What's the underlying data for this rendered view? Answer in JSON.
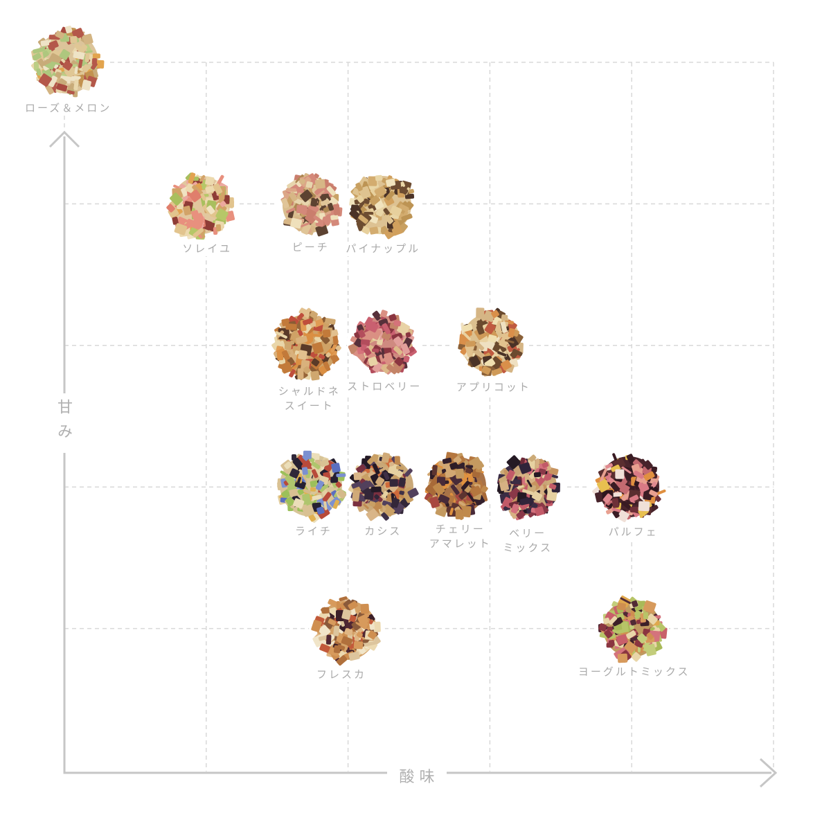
{
  "colors": {
    "background": "#ffffff",
    "grid": "#d8d8d8",
    "axis": "#c6c6c6",
    "axis_label": "#b0b0b0",
    "point_label": "#a9a9a9"
  },
  "chart_data": {
    "type": "scatter",
    "title": "",
    "xlabel": "酸味",
    "ylabel": "甘み",
    "x_range": [
      0,
      5
    ],
    "y_range": [
      0,
      5
    ],
    "grid": "dashed",
    "legend": "none",
    "points": [
      {
        "id": "rose-melon",
        "label_lines": [
          "ローズ＆メロン"
        ],
        "x": 0.02,
        "y": 5.0,
        "size": 104,
        "label_dx": 0,
        "base": "#dcc49a",
        "palette": [
          "#e9d7ac",
          "#e0c795",
          "#d3b482",
          "#c8ab79",
          "#aec77e",
          "#bcce86",
          "#a84a40",
          "#b4584a",
          "#e2a44e",
          "#eee3c6",
          "#c2924f"
        ]
      },
      {
        "id": "soleil",
        "label_lines": [
          "ソレイユ"
        ],
        "x": 0.96,
        "y": 3.99,
        "size": 98,
        "label_dx": 8,
        "base": "#e2c79e",
        "palette": [
          "#ecd9ae",
          "#e2c48e",
          "#e8907e",
          "#e07e6c",
          "#eca89e",
          "#b6c768",
          "#a9bf5e",
          "#d2a368",
          "#8e3c36",
          "#e2a351",
          "#f1e3c2"
        ]
      },
      {
        "id": "peach",
        "label_lines": [
          "ピーチ"
        ],
        "x": 1.73,
        "y": 3.99,
        "size": 93,
        "label_dx": 0,
        "base": "#d9bd8e",
        "palette": [
          "#e0c598",
          "#d7b686",
          "#d4897a",
          "#ca7e6d",
          "#c9a267",
          "#e7d5ad",
          "#ad8752",
          "#5c4231",
          "#dca687",
          "#efe0bb"
        ]
      },
      {
        "id": "pineapple",
        "label_lines": [
          "パイナップル"
        ],
        "x": 2.24,
        "y": 3.99,
        "size": 98,
        "label_dx": 0,
        "base": "#ddc293",
        "palette": [
          "#e9d6a7",
          "#dfc390",
          "#d3ac6f",
          "#c8a061",
          "#f1e3bd",
          "#4b3327",
          "#6d4c31",
          "#d1a05d",
          "#e7d09d",
          "#bd9454"
        ]
      },
      {
        "id": "chardonnay-sweet",
        "label_lines": [
          "シャルドネ",
          "スイート"
        ],
        "x": 1.71,
        "y": 3.0,
        "size": 104,
        "label_dx": 2,
        "base": "#cfa266",
        "palette": [
          "#d9b17c",
          "#cfa76f",
          "#da8f43",
          "#e09b53",
          "#976539",
          "#8a5c34",
          "#e9d6a9",
          "#bf4e3c",
          "#5a3a28",
          "#e2c08e",
          "#c27a3a"
        ]
      },
      {
        "id": "strawberry",
        "label_lines": [
          "ストロベリー"
        ],
        "x": 2.25,
        "y": 3.01,
        "size": 95,
        "label_dx": 0,
        "base": "#cf8a80",
        "palette": [
          "#d5737a",
          "#c96070",
          "#b34d5c",
          "#e8d2a5",
          "#ddb98a",
          "#8a3540",
          "#da9083",
          "#57303a",
          "#e29f9b",
          "#c48468"
        ]
      },
      {
        "id": "apricot",
        "label_lines": [
          "アプリコット"
        ],
        "x": 3.01,
        "y": 3.02,
        "size": 100,
        "label_dx": 2,
        "base": "#dcc08f",
        "palette": [
          "#e2c28e",
          "#e9d1a1",
          "#efe0c1",
          "#d98f4a",
          "#cf9a58",
          "#6b4a2e",
          "#4b3327",
          "#c05a40",
          "#d5b585",
          "#8a6038",
          "#f0dfb0"
        ]
      },
      {
        "id": "lychee",
        "label_lines": [
          "ライチ"
        ],
        "x": 1.74,
        "y": 2.01,
        "size": 104,
        "label_dx": 2,
        "base": "#d8c598",
        "palette": [
          "#e3d0a3",
          "#d9c193",
          "#d4ba8a",
          "#5a6fc0",
          "#7b90d1",
          "#9cc05a",
          "#afc56d",
          "#302839",
          "#262031",
          "#b84a3a",
          "#e0b050",
          "#ebdeb9"
        ]
      },
      {
        "id": "cassis",
        "label_lines": [
          "カシス"
        ],
        "x": 2.25,
        "y": 2.0,
        "size": 100,
        "label_dx": -2,
        "base": "#c9a878",
        "palette": [
          "#d9b588",
          "#d0aa78",
          "#c9a065",
          "#332739",
          "#241a26",
          "#3e3046",
          "#cf6a3a",
          "#e6d1a1",
          "#7a3040",
          "#52405c",
          "#c08a50"
        ]
      },
      {
        "id": "cherry-amaretto",
        "label_lines": [
          "チェリー",
          "アマレット"
        ],
        "x": 2.77,
        "y": 2.01,
        "size": 97,
        "label_dx": 3,
        "base": "#a87348",
        "palette": [
          "#b5773f",
          "#a86a38",
          "#c08a4c",
          "#472a38",
          "#33202c",
          "#d2a873",
          "#e0913f",
          "#2e1c26",
          "#a84840",
          "#5c3430",
          "#c49a60"
        ]
      },
      {
        "id": "berry-mix",
        "label_lines": [
          "ベリー",
          "ミックス"
        ],
        "x": 3.27,
        "y": 2.0,
        "size": 96,
        "label_dx": -2,
        "label_dy": 5,
        "base": "#c8a478",
        "palette": [
          "#d6b183",
          "#ccab78",
          "#30243a",
          "#251a24",
          "#d4707c",
          "#c25a68",
          "#6e2a38",
          "#e6d1a1",
          "#8a3848",
          "#c79460",
          "#3a2c44"
        ]
      },
      {
        "id": "parfait",
        "label_lines": [
          "パルフェ"
        ],
        "x": 3.98,
        "y": 2.0,
        "size": 102,
        "label_dx": 5,
        "base": "#4a252c",
        "palette": [
          "#47232a",
          "#3a1c24",
          "#5a2e30",
          "#2e161e",
          "#e08a90",
          "#d97a85",
          "#e8a090",
          "#e8c050",
          "#f0e0d8",
          "#6e3038",
          "#c46a70",
          "#e09040",
          "#381a22"
        ]
      },
      {
        "id": "fresca",
        "label_lines": [
          "フレスカ"
        ],
        "x": 1.99,
        "y": 0.99,
        "size": 100,
        "label_dx": -9,
        "base": "#d4a268",
        "palette": [
          "#d79a5c",
          "#cf8f50",
          "#ecd9b0",
          "#f1e5c9",
          "#4f2733",
          "#3c1f28",
          "#c25a3a",
          "#8a5a3a",
          "#e0b684",
          "#ddc59d",
          "#b0703c"
        ]
      },
      {
        "id": "yogurt-mix",
        "label_lines": [
          "ヨーグルトミックス"
        ],
        "x": 4.0,
        "y": 1.0,
        "size": 97,
        "label_dx": 2,
        "base": "#c09a60",
        "palette": [
          "#b7c468",
          "#a9b958",
          "#c3cd7b",
          "#d4737c",
          "#c9606a",
          "#d79a5c",
          "#cf8f50",
          "#512a35",
          "#3c2028",
          "#e9d6a9",
          "#8a3540",
          "#e0a84e"
        ]
      }
    ]
  }
}
